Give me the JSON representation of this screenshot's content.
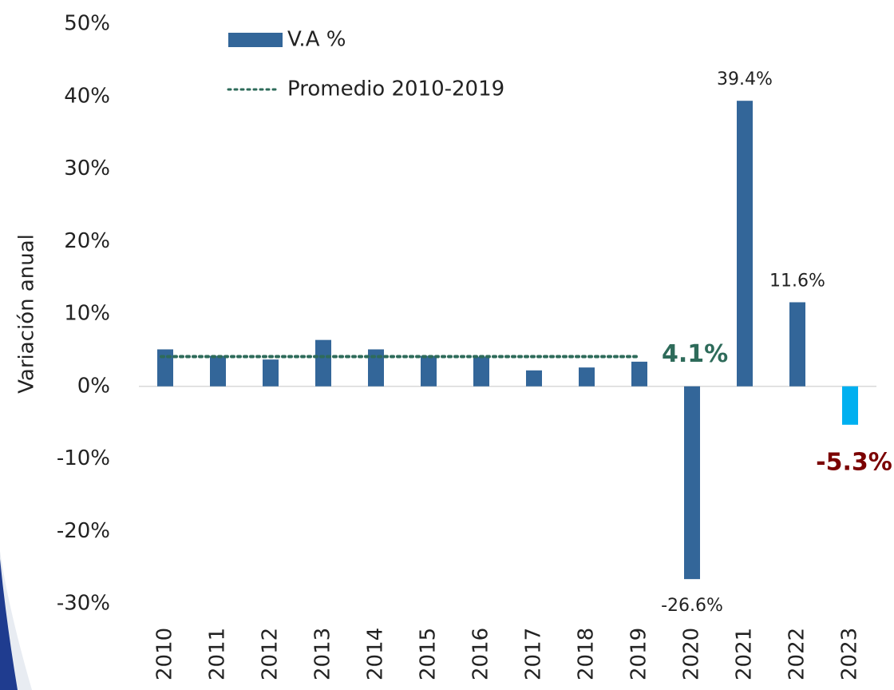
{
  "chart_data": {
    "type": "bar",
    "y_axis_label": "Variación anual",
    "categories": [
      "2010",
      "2011",
      "2012",
      "2013",
      "2014",
      "2015",
      "2016",
      "2017",
      "2018",
      "2019",
      "2020",
      "2021",
      "2022",
      "2023"
    ],
    "series": [
      {
        "name": "V.A %",
        "type": "bar",
        "color": "#336699",
        "colors": [
          "#336699",
          "#336699",
          "#336699",
          "#336699",
          "#336699",
          "#336699",
          "#336699",
          "#336699",
          "#336699",
          "#336699",
          "#336699",
          "#336699",
          "#336699",
          "#00b0f0"
        ],
        "values": [
          5.1,
          4.2,
          3.7,
          6.4,
          5.1,
          4.2,
          4.1,
          2.2,
          2.6,
          3.4,
          -26.6,
          39.4,
          11.6,
          -5.3
        ],
        "value_labels": [
          null,
          null,
          null,
          null,
          null,
          null,
          null,
          null,
          null,
          null,
          "-26.6%",
          "39.4%",
          "11.6%",
          "-5.3%"
        ]
      },
      {
        "name": "Promedio 2010-2019",
        "type": "line",
        "color": "#2e6b5a",
        "values": [
          4.1,
          4.1,
          4.1,
          4.1,
          4.1,
          4.1,
          4.1,
          4.1,
          4.1,
          4.1,
          null,
          null,
          null,
          null
        ],
        "value_labels": [
          null,
          null,
          null,
          null,
          null,
          null,
          null,
          null,
          null,
          "4.1%",
          null,
          null,
          null,
          null
        ]
      }
    ],
    "ylim": [
      -30,
      50
    ],
    "yticks": [
      {
        "value": -30,
        "label": "-30%"
      },
      {
        "value": -20,
        "label": "-20%"
      },
      {
        "value": -10,
        "label": "-10%"
      },
      {
        "value": 0,
        "label": "0%"
      },
      {
        "value": 10,
        "label": "10%"
      },
      {
        "value": 20,
        "label": "20%"
      },
      {
        "value": 30,
        "label": "30%"
      },
      {
        "value": 40,
        "label": "40%"
      },
      {
        "value": 50,
        "label": "50%"
      }
    ]
  }
}
